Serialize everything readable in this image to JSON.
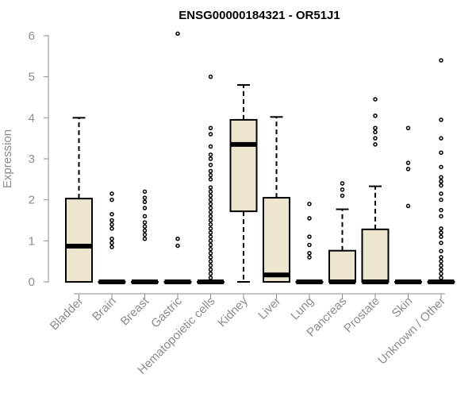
{
  "chart_data": {
    "type": "box",
    "title": "ENSG00000184321 - OR51J1",
    "xlabel": "",
    "ylabel": "Expression",
    "ylim": [
      0,
      6
    ],
    "yticks": [
      "0",
      "1",
      "2",
      "3",
      "4",
      "5",
      "6"
    ],
    "box_fill": "#ede6cf",
    "categories": [
      "Bladder",
      "Brain",
      "Breast",
      "Gastric",
      "Hematopoietic cells",
      "Kidney",
      "Liver",
      "Lung",
      "Pancreas",
      "Prostate",
      "Skin",
      "Unknown / Other"
    ],
    "series": [
      {
        "category": "Bladder",
        "q1": 0,
        "median": 0.87,
        "q3": 2.03,
        "whisker_low": 0,
        "whisker_high": 4.0,
        "outliers": []
      },
      {
        "category": "Brain",
        "q1": 0,
        "median": 0,
        "q3": 0,
        "whisker_low": 0,
        "whisker_high": 0,
        "outliers": [
          0.85,
          0.95,
          1.05,
          1.3,
          1.4,
          1.5,
          1.65,
          2.0,
          2.15
        ]
      },
      {
        "category": "Breast",
        "q1": 0,
        "median": 0,
        "q3": 0,
        "whisker_low": 0,
        "whisker_high": 0,
        "outliers": [
          1.05,
          1.15,
          1.25,
          1.35,
          1.45,
          1.6,
          1.8,
          1.95,
          2.05,
          2.2
        ]
      },
      {
        "category": "Gastric",
        "q1": 0,
        "median": 0,
        "q3": 0,
        "whisker_low": 0,
        "whisker_high": 0,
        "outliers": [
          0.88,
          1.05,
          6.05
        ]
      },
      {
        "category": "Hematopoietic cells",
        "q1": 0,
        "median": 0,
        "q3": 0,
        "whisker_low": 0,
        "whisker_high": 0,
        "outliers": [
          0.1,
          0.2,
          0.3,
          0.4,
          0.5,
          0.6,
          0.7,
          0.8,
          0.9,
          1.0,
          1.1,
          1.2,
          1.3,
          1.4,
          1.5,
          1.6,
          1.7,
          1.8,
          1.9,
          2.0,
          2.1,
          2.2,
          2.3,
          2.5,
          2.6,
          2.7,
          2.85,
          3.0,
          3.1,
          3.3,
          3.6,
          3.75,
          5.0
        ]
      },
      {
        "category": "Kidney",
        "q1": 1.72,
        "median": 3.35,
        "q3": 3.95,
        "whisker_low": 0,
        "whisker_high": 4.8,
        "outliers": []
      },
      {
        "category": "Liver",
        "q1": 0,
        "median": 0.17,
        "q3": 2.05,
        "whisker_low": 0,
        "whisker_high": 4.02,
        "outliers": []
      },
      {
        "category": "Lung",
        "q1": 0,
        "median": 0,
        "q3": 0,
        "whisker_low": 0,
        "whisker_high": 0,
        "outliers": [
          0.6,
          0.7,
          0.9,
          1.1,
          1.55,
          1.9
        ]
      },
      {
        "category": "Pancreas",
        "q1": 0,
        "median": 0,
        "q3": 0.76,
        "whisker_low": 0,
        "whisker_high": 1.77,
        "outliers": [
          2.1,
          2.25,
          2.4
        ]
      },
      {
        "category": "Prostate",
        "q1": 0,
        "median": 0,
        "q3": 1.28,
        "whisker_low": 0,
        "whisker_high": 2.33,
        "outliers": [
          3.35,
          3.5,
          3.65,
          3.75,
          4.05,
          4.45
        ]
      },
      {
        "category": "Skin",
        "q1": 0,
        "median": 0,
        "q3": 0,
        "whisker_low": 0,
        "whisker_high": 0,
        "outliers": [
          1.85,
          2.75,
          2.9,
          3.75
        ]
      },
      {
        "category": "Unknown / Other",
        "q1": 0,
        "median": 0,
        "q3": 0,
        "whisker_low": 0,
        "whisker_high": 0,
        "outliers": [
          0.1,
          0.2,
          0.3,
          0.4,
          0.5,
          0.6,
          0.75,
          0.95,
          1.1,
          1.2,
          1.3,
          1.6,
          1.75,
          2.0,
          2.15,
          2.35,
          2.45,
          2.55,
          2.8,
          3.15,
          3.5,
          3.95,
          5.4
        ]
      }
    ]
  }
}
